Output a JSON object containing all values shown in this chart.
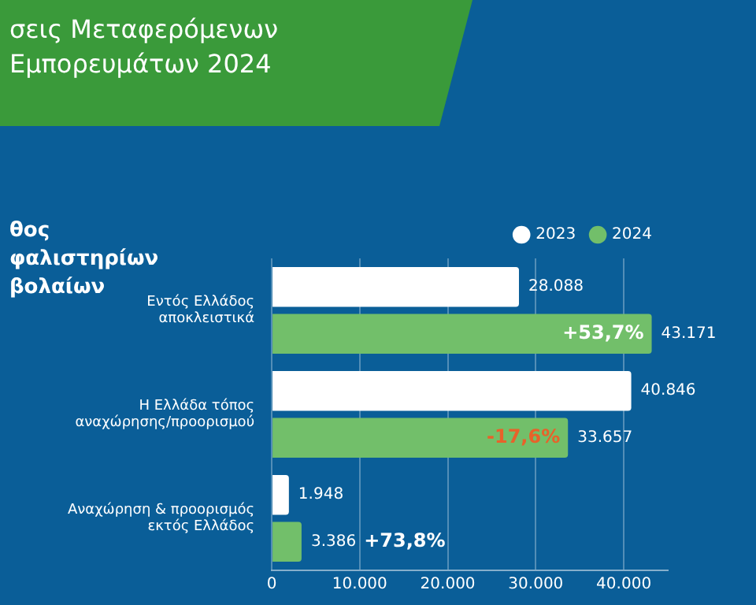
{
  "chart_data": {
    "type": "bar",
    "orientation": "horizontal",
    "title": "σεις Μεταφερόμενων Εμπορευμάτων 2024",
    "subtitle": "θος\nφαλιστηρίων\nβολαίων",
    "categories": [
      "Εντός Ελλάδος\nαποκλειστικά",
      "Η Ελλάδα τόπος\nαναχώρησης/προορισμού",
      "Αναχώρηση & προορισμός\nεκτός Ελλάδος"
    ],
    "series": [
      {
        "name": "2023",
        "color": "#ffffff",
        "values": [
          28088,
          40846,
          1948
        ],
        "value_labels": [
          "28.088",
          "40.846",
          "1.948"
        ]
      },
      {
        "name": "2024",
        "color": "#72bf6a",
        "values": [
          43171,
          33657,
          3386
        ],
        "value_labels": [
          "43.171",
          "33.657",
          "3.386"
        ]
      }
    ],
    "xlim": [
      0,
      45000
    ],
    "xticks": [
      0,
      {
        "value": 10000,
        "label": "10.000"
      },
      {
        "value": 20000,
        "label": "20.000"
      },
      {
        "value": 30000,
        "label": "30.000"
      },
      {
        "value": 40000,
        "label": "40.000"
      }
    ],
    "grid": "x",
    "legend": "top",
    "annotations": [
      "+53,7%",
      "-17,6%",
      "+73,8%"
    ]
  }
}
